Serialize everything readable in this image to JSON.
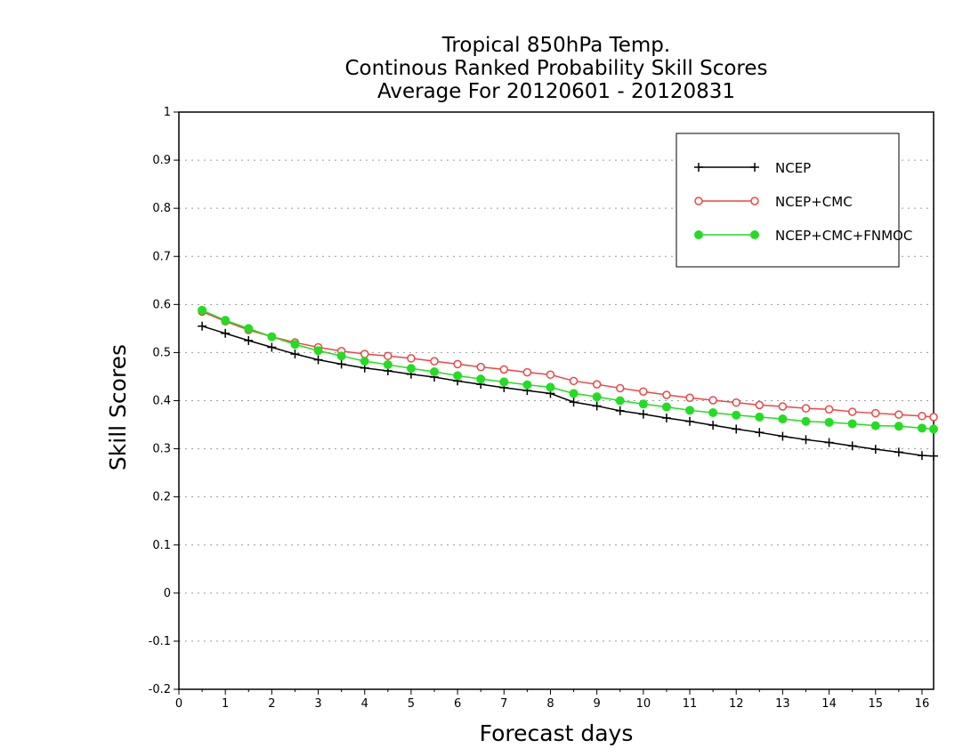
{
  "chart_data": {
    "type": "line",
    "title_lines": [
      "Tropical 850hPa Temp.",
      "Continous Ranked Probability Skill Scores",
      "Average For 20120601 - 20120831"
    ],
    "xlabel": "Forecast days",
    "ylabel": "Skill Scores",
    "xlim": [
      0,
      16.25
    ],
    "ylim": [
      -0.2,
      1
    ],
    "x_ticks": [
      0,
      1,
      2,
      3,
      4,
      5,
      6,
      7,
      8,
      9,
      10,
      11,
      12,
      13,
      14,
      15,
      16
    ],
    "y_ticks": [
      -0.2,
      -0.1,
      0,
      0.1,
      0.2,
      0.3,
      0.4,
      0.5,
      0.6,
      0.7,
      0.8,
      0.9,
      1
    ],
    "y_tick_labels": [
      "-0.2",
      "-0.1",
      "0",
      "0.1",
      "0.2",
      "0.3",
      "0.4",
      "0.5",
      "0.6",
      "0.7",
      "0.8",
      "0.9",
      "1"
    ],
    "grid": "dotted-horizontal",
    "legend_position": "top-right",
    "x": [
      0.5,
      1,
      1.5,
      2,
      2.5,
      3,
      3.5,
      4,
      4.5,
      5,
      5.5,
      6,
      6.5,
      7,
      7.5,
      8,
      8.5,
      9,
      9.5,
      10,
      10.5,
      11,
      11.5,
      12,
      12.5,
      13,
      13.5,
      14,
      14.5,
      15,
      15.5,
      16,
      16.25
    ],
    "series": [
      {
        "name": "NCEP",
        "color": "#000000",
        "marker": "plus",
        "values": [
          0.555,
          0.54,
          0.525,
          0.511,
          0.497,
          0.485,
          0.476,
          0.468,
          0.462,
          0.455,
          0.449,
          0.441,
          0.434,
          0.427,
          0.421,
          0.415,
          0.397,
          0.389,
          0.379,
          0.372,
          0.364,
          0.357,
          0.349,
          0.341,
          0.334,
          0.326,
          0.319,
          0.313,
          0.306,
          0.299,
          0.293,
          0.286,
          0.285
        ]
      },
      {
        "name": "NCEP+CMC",
        "color": "#ef4444",
        "marker": "open-circle",
        "values": [
          0.585,
          0.565,
          0.547,
          0.533,
          0.521,
          0.511,
          0.503,
          0.497,
          0.493,
          0.488,
          0.482,
          0.476,
          0.47,
          0.465,
          0.459,
          0.454,
          0.441,
          0.434,
          0.426,
          0.419,
          0.412,
          0.406,
          0.401,
          0.396,
          0.391,
          0.388,
          0.384,
          0.382,
          0.377,
          0.374,
          0.371,
          0.368,
          0.366
        ]
      },
      {
        "name": "NCEP+CMC+FNMOC",
        "color": "#22dd22",
        "marker": "filled-circle",
        "values": [
          0.588,
          0.567,
          0.55,
          0.533,
          0.517,
          0.504,
          0.493,
          0.482,
          0.475,
          0.467,
          0.46,
          0.452,
          0.445,
          0.439,
          0.433,
          0.428,
          0.415,
          0.408,
          0.4,
          0.393,
          0.387,
          0.38,
          0.375,
          0.37,
          0.366,
          0.362,
          0.357,
          0.355,
          0.352,
          0.348,
          0.347,
          0.343,
          0.341
        ]
      }
    ]
  }
}
